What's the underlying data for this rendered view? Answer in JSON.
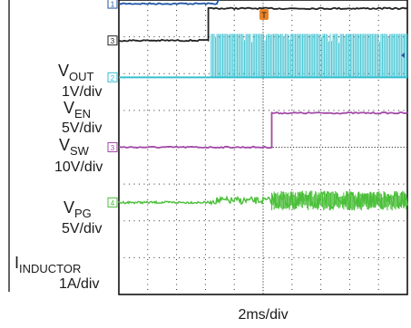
{
  "chart_data": {
    "type": "line",
    "title": "",
    "xlabel": "2ms/div",
    "x_divisions": 10,
    "y_divisions": 8,
    "x_unit": "ms",
    "grid": true,
    "trigger_marker": "T",
    "trigger_time_ms": 0,
    "x_range_ms": [
      -8,
      12
    ],
    "channels": [
      {
        "id": "1",
        "name_main": "V",
        "name_sub": "OUT",
        "scale": "1V/div",
        "color": "#2156a5",
        "ground_div": 3.9,
        "points": [
          [
            -8,
            0
          ],
          [
            -1.2,
            0
          ],
          [
            0,
            1.0
          ],
          [
            0.8,
            2.3
          ],
          [
            2,
            2.3
          ],
          [
            12,
            2.3
          ]
        ]
      },
      {
        "id": "3",
        "name_main": "V",
        "name_sub": "EN",
        "scale": "5V/div",
        "color": "#222222",
        "ground_div": 2.9,
        "points": [
          [
            -8,
            0
          ],
          [
            -1.8,
            0
          ],
          [
            -1.8,
            0.87
          ],
          [
            0,
            0.87
          ],
          [
            12,
            0.87
          ]
        ]
      },
      {
        "id": "2",
        "name_main": "V",
        "name_sub": "SW",
        "scale": "10V/div",
        "color": "#33bfd0",
        "ground_div": 1.9,
        "pattern": "switching",
        "switching_start_ms": -1.6,
        "switching_high_div": 1.18
      },
      {
        "id": "3",
        "name_main": "V",
        "name_sub": "PG",
        "scale": "5V/div",
        "color": "#a34aa8",
        "ground_div": 0.0,
        "points": [
          [
            -8,
            0
          ],
          [
            2.6,
            0
          ],
          [
            2.6,
            0.93
          ],
          [
            12,
            0.93
          ]
        ]
      },
      {
        "id": "4",
        "name_main": "I",
        "name_sub": "INDUCTOR",
        "scale": "1A/div",
        "color": "#4cbf3a",
        "ground_div": -1.5,
        "pattern": "ripple",
        "ripple_start_ms": -1.6,
        "ripple_full_ms": 2.6
      }
    ]
  }
}
